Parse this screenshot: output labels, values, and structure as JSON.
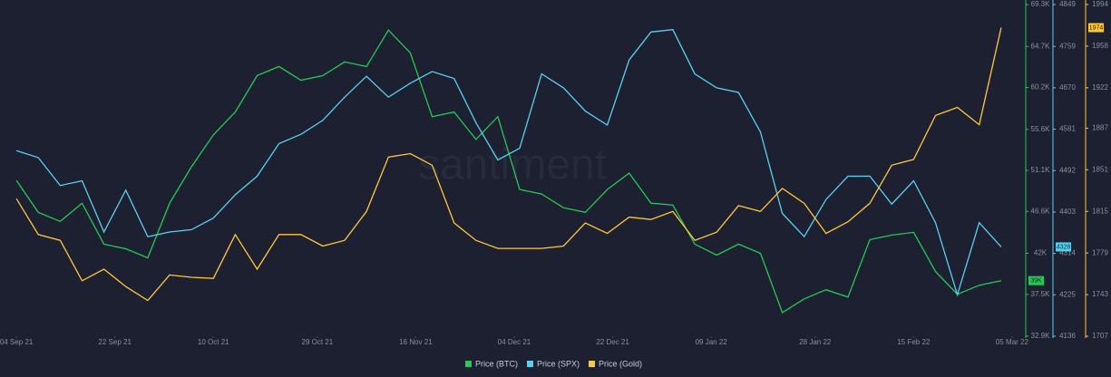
{
  "chart_data": {
    "type": "line",
    "watermark": "santiment",
    "x": [
      "2021-09-04",
      "2021-09-08",
      "2021-09-12",
      "2021-09-16",
      "2021-09-20",
      "2021-09-24",
      "2021-09-28",
      "2021-10-02",
      "2021-10-06",
      "2021-10-10",
      "2021-10-14",
      "2021-10-18",
      "2021-10-22",
      "2021-10-26",
      "2021-10-30",
      "2021-11-03",
      "2021-11-07",
      "2021-11-11",
      "2021-11-15",
      "2021-11-19",
      "2021-11-23",
      "2021-11-27",
      "2021-12-01",
      "2021-12-05",
      "2021-12-09",
      "2021-12-13",
      "2021-12-17",
      "2021-12-21",
      "2021-12-25",
      "2021-12-29",
      "2022-01-02",
      "2022-01-06",
      "2022-01-10",
      "2022-01-14",
      "2022-01-18",
      "2022-01-22",
      "2022-01-26",
      "2022-01-30",
      "2022-02-03",
      "2022-02-07",
      "2022-02-11",
      "2022-02-15",
      "2022-02-19",
      "2022-02-23",
      "2022-02-27",
      "2022-03-03"
    ],
    "xlim": [
      "2021-09-01",
      "2022-03-07"
    ],
    "xticks": [
      {
        "value": "2021-09-04",
        "label": "04 Sep 21"
      },
      {
        "value": "2021-09-22",
        "label": "22 Sep 21"
      },
      {
        "value": "2021-10-10",
        "label": "10 Oct 21"
      },
      {
        "value": "2021-10-29",
        "label": "29 Oct 21"
      },
      {
        "value": "2021-11-16",
        "label": "16 Nov 21"
      },
      {
        "value": "2021-12-04",
        "label": "04 Dec 21"
      },
      {
        "value": "2021-12-22",
        "label": "22 Dec 21"
      },
      {
        "value": "2022-01-09",
        "label": "09 Jan 22"
      },
      {
        "value": "2022-01-28",
        "label": "28 Jan 22"
      },
      {
        "value": "2022-02-15",
        "label": "15 Feb 22"
      },
      {
        "value": "2022-03-05",
        "label": "05 Mar 22"
      }
    ],
    "ylim": [
      32900,
      69300
    ],
    "yticks": [
      {
        "value": 32900,
        "label": "32.9K"
      },
      {
        "value": 37500,
        "label": "37.5K"
      },
      {
        "value": 42000,
        "label": "42K"
      },
      {
        "value": 46600,
        "label": "46.6K"
      },
      {
        "value": 51100,
        "label": "51.1K"
      },
      {
        "value": 55600,
        "label": "55.6K"
      },
      {
        "value": 60200,
        "label": "60.2K"
      },
      {
        "value": 64700,
        "label": "64.7K"
      },
      {
        "value": 69300,
        "label": "69.3K"
      }
    ],
    "y2lim": [
      4136,
      4849
    ],
    "y2ticks": [
      4136,
      4225,
      4314,
      4403,
      4492,
      4581,
      4670,
      4759,
      4849
    ],
    "y3lim": [
      1707,
      1994
    ],
    "y3ticks": [
      1707,
      1743,
      1779,
      1815,
      1851,
      1887,
      1922,
      1958,
      1994
    ],
    "series": [
      {
        "name": "Price (BTC)",
        "color": "#26c953",
        "axis": "y",
        "last_value_label": "39K",
        "values": [
          50000,
          46500,
          45500,
          47500,
          43000,
          42500,
          41500,
          47500,
          51500,
          55000,
          57500,
          61500,
          62500,
          61000,
          61500,
          63000,
          62500,
          66500,
          64000,
          57000,
          57500,
          54500,
          57000,
          49000,
          48500,
          47000,
          46500,
          49000,
          50800,
          47500,
          47300,
          43000,
          41800,
          43000,
          42000,
          35500,
          37000,
          38000,
          37200,
          43500,
          44000,
          44300,
          40000,
          37500,
          38500,
          39000
        ]
      },
      {
        "name": "Price (SPX)",
        "color": "#5ad0f0",
        "axis": "y2",
        "last_value_label": "4328",
        "values": [
          4535,
          4520,
          4460,
          4470,
          4360,
          4450,
          4350,
          4360,
          4365,
          4390,
          4440,
          4480,
          4550,
          4570,
          4600,
          4650,
          4695,
          4650,
          4680,
          4705,
          4690,
          4595,
          4515,
          4540,
          4700,
          4670,
          4620,
          4590,
          4730,
          4790,
          4795,
          4700,
          4670,
          4660,
          4575,
          4400,
          4350,
          4430,
          4480,
          4480,
          4420,
          4470,
          4380,
          4225,
          4380,
          4328
        ]
      },
      {
        "name": "Price (Gold)",
        "color": "#ffc739",
        "axis": "y3",
        "last_value_label": "1974",
        "values": [
          1826,
          1795,
          1790,
          1755,
          1765,
          1750,
          1738,
          1760,
          1758,
          1757,
          1795,
          1765,
          1795,
          1795,
          1785,
          1790,
          1815,
          1862,
          1865,
          1855,
          1805,
          1790,
          1783,
          1783,
          1783,
          1785,
          1805,
          1796,
          1810,
          1808,
          1815,
          1790,
          1797,
          1820,
          1815,
          1835,
          1822,
          1796,
          1806,
          1822,
          1855,
          1860,
          1898,
          1905,
          1890,
          1974
        ]
      }
    ]
  }
}
